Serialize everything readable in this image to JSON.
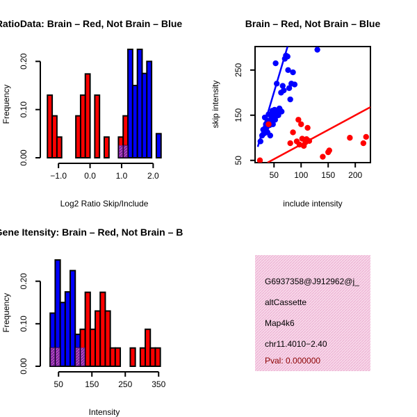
{
  "colors": {
    "red": "#ff0000",
    "blue": "#0000ff",
    "overlap": "#7a1fa0",
    "panel_bg": "#f8d8ea",
    "pval": "#8b0000"
  },
  "chart_data": [
    {
      "id": "ratio",
      "type": "bar",
      "title": "RatioData: Brain – Red, Not Brain – Blue",
      "xlabel": "Log2 Ratio Skip/Include",
      "ylabel": "Frequency",
      "xlim": [
        -1.4,
        2.3
      ],
      "ylim": [
        0,
        0.225
      ],
      "xticks": [
        -1.0,
        0.0,
        1.0,
        2.0
      ],
      "xtick_labels": [
        "−1.0",
        "0.0",
        "1.0",
        "2.0"
      ],
      "yticks": [
        0.0,
        0.1,
        0.2
      ],
      "ytick_labels": [
        "0.00",
        "0.10",
        "0.20"
      ],
      "bin_width": 0.15,
      "series": [
        {
          "name": "Brain",
          "color": "red",
          "bins": [
            [
              -1.35,
              0.13
            ],
            [
              -1.2,
              0.087
            ],
            [
              -1.05,
              0.043
            ],
            [
              -0.45,
              0.087
            ],
            [
              -0.3,
              0.13
            ],
            [
              -0.15,
              0.174
            ],
            [
              0.15,
              0.13
            ],
            [
              0.45,
              0.043
            ],
            [
              0.9,
              0.043
            ],
            [
              1.05,
              0.087
            ]
          ]
        },
        {
          "name": "Not Brain",
          "color": "blue",
          "bins": [
            [
              1.05,
              0.025
            ],
            [
              1.2,
              0.225
            ],
            [
              1.35,
              0.15
            ],
            [
              1.5,
              0.225
            ],
            [
              1.65,
              0.175
            ],
            [
              1.8,
              0.2
            ],
            [
              2.1,
              0.05
            ]
          ]
        }
      ],
      "overlap_bins": [
        [
          0.9,
          0.025
        ],
        [
          1.05,
          0.025
        ]
      ]
    },
    {
      "id": "scatter",
      "type": "scatter",
      "title": "Brain – Red, Not Brain – Blue",
      "xlabel": "include intensity",
      "ylabel": "skip intensity",
      "xlim": [
        15,
        228
      ],
      "ylim": [
        45,
        302
      ],
      "xticks": [
        50,
        100,
        150,
        200
      ],
      "yticks": [
        50,
        150,
        250
      ],
      "series": [
        {
          "name": "Not Brain",
          "color": "blue",
          "points": [
            [
              25,
              92
            ],
            [
              28,
              105
            ],
            [
              30,
              118
            ],
            [
              32,
              110
            ],
            [
              33,
              145
            ],
            [
              35,
              130
            ],
            [
              36,
              122
            ],
            [
              38,
              112
            ],
            [
              39,
              138
            ],
            [
              40,
              152
            ],
            [
              42,
              128
            ],
            [
              43,
              105
            ],
            [
              45,
              148
            ],
            [
              46,
              140
            ],
            [
              47,
              160
            ],
            [
              48,
              130
            ],
            [
              50,
              155
            ],
            [
              51,
              162
            ],
            [
              52,
              140
            ],
            [
              53,
              265
            ],
            [
              54,
              148
            ],
            [
              55,
              220
            ],
            [
              56,
              155
            ],
            [
              58,
              150
            ],
            [
              60,
              165
            ],
            [
              62,
              160
            ],
            [
              63,
              200
            ],
            [
              64,
              158
            ],
            [
              66,
              215
            ],
            [
              68,
              205
            ],
            [
              70,
              275
            ],
            [
              72,
              282
            ],
            [
              75,
              280
            ],
            [
              76,
              250
            ],
            [
              78,
              210
            ],
            [
              80,
              185
            ],
            [
              82,
              220
            ],
            [
              85,
              245
            ],
            [
              88,
              218
            ],
            [
              130,
              295
            ]
          ],
          "fit": [
            [
              20,
              80
            ],
            [
              75,
              302
            ]
          ]
        },
        {
          "name": "Brain",
          "color": "red",
          "points": [
            [
              24,
              50
            ],
            [
              40,
              130
            ],
            [
              80,
              88
            ],
            [
              85,
              112
            ],
            [
              92,
              92
            ],
            [
              95,
              140
            ],
            [
              97,
              85
            ],
            [
              100,
              130
            ],
            [
              102,
              98
            ],
            [
              105,
              82
            ],
            [
              108,
              90
            ],
            [
              110,
              97
            ],
            [
              112,
              122
            ],
            [
              115,
              93
            ],
            [
              140,
              58
            ],
            [
              150,
              68
            ],
            [
              152,
              72
            ],
            [
              190,
              100
            ],
            [
              215,
              88
            ],
            [
              220,
              102
            ]
          ],
          "fit": [
            [
              38,
              45
            ],
            [
              228,
              168
            ]
          ]
        }
      ]
    },
    {
      "id": "intensity",
      "type": "bar",
      "title": "Gene Itensity: Brain – Red, Not Brain – B",
      "xlabel": "Intensity",
      "ylabel": "Frequency",
      "xlim": [
        12,
        362
      ],
      "ylim": [
        0,
        0.255
      ],
      "xticks": [
        50,
        150,
        250,
        350
      ],
      "xtick_labels": [
        "50",
        "150",
        "250",
        "350"
      ],
      "yticks": [
        0.0,
        0.1,
        0.2
      ],
      "ytick_labels": [
        "0.00",
        "0.10",
        "0.20"
      ],
      "bin_width": 15,
      "series": [
        {
          "name": "Not Brain",
          "color": "blue",
          "bins": [
            [
              25,
              0.125
            ],
            [
              40,
              0.25
            ],
            [
              55,
              0.15
            ],
            [
              70,
              0.175
            ],
            [
              85,
              0.225
            ],
            [
              100,
              0.075
            ],
            [
              115,
              0.05
            ]
          ]
        },
        {
          "name": "Brain",
          "color": "red",
          "bins": [
            [
              25,
              0.043
            ],
            [
              40,
              0.043
            ],
            [
              100,
              0.043
            ],
            [
              115,
              0.087
            ],
            [
              130,
              0.174
            ],
            [
              145,
              0.087
            ],
            [
              160,
              0.13
            ],
            [
              175,
              0.174
            ],
            [
              190,
              0.13
            ],
            [
              205,
              0.043
            ],
            [
              220,
              0.043
            ],
            [
              265,
              0.043
            ],
            [
              295,
              0.043
            ],
            [
              310,
              0.087
            ],
            [
              325,
              0.043
            ],
            [
              340,
              0.043
            ]
          ]
        }
      ],
      "overlap_bins": [
        [
          25,
          0.043
        ],
        [
          40,
          0.043
        ],
        [
          100,
          0.043
        ],
        [
          115,
          0.043
        ]
      ]
    }
  ],
  "info_panel": {
    "event_id": "G6937358@J912962@j_",
    "event_type": "altCassette",
    "gene": "Map4k6",
    "location": "chr11.4010−2.40",
    "pval": "Pval: 0.000000"
  }
}
